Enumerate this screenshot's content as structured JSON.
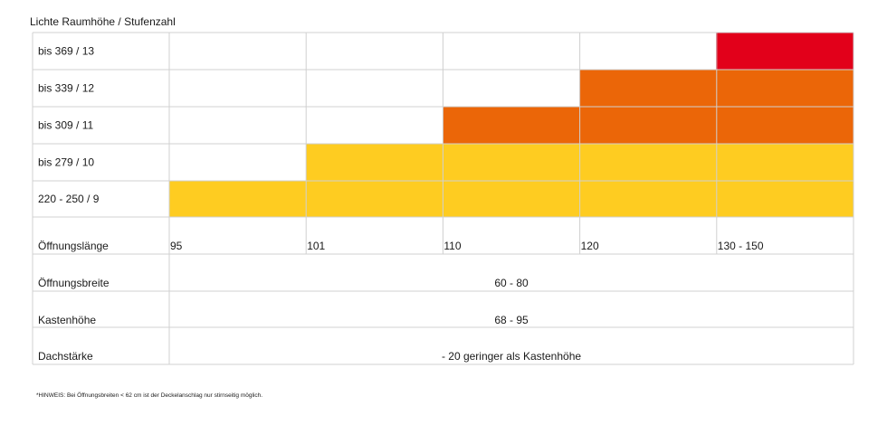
{
  "header": {
    "title": "Lichte Raumhöhe / Stufenzahl"
  },
  "stair_rows": [
    "bis 369 / 13",
    "bis 339 / 12",
    "bis 309 / 11",
    "bis 279 / 10",
    "220 - 250 / 9"
  ],
  "opening_length": {
    "label": "Öffnungslänge",
    "values": [
      "95",
      "101",
      "110",
      "120",
      "130 - 150"
    ]
  },
  "spec_rows": [
    {
      "label": "Öffnungsbreite",
      "value": "60 - 80"
    },
    {
      "label": "Kastenhöhe",
      "value": "68 - 95"
    },
    {
      "label": "Dachstärke",
      "value": "- 20 geringer als Kastenhöhe"
    }
  ],
  "footnote": "*HINWEIS: Bei Öffnungsbreiten < 62 cm ist der Deckelanschlag nur stirnseitig möglich."
}
